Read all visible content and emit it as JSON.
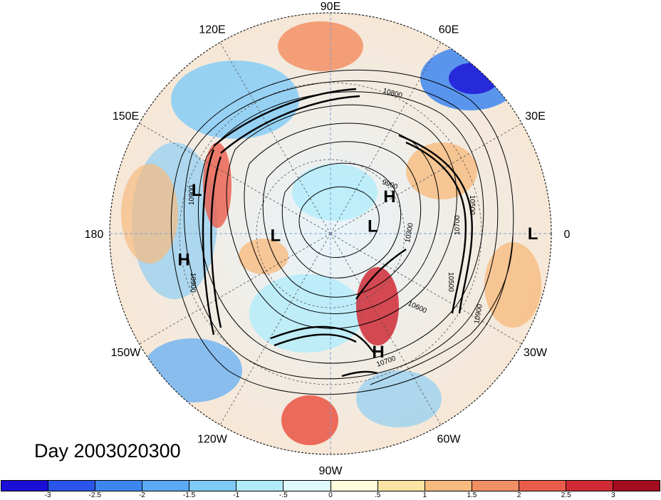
{
  "title": "Day 2003020300",
  "projection": "polar-stereographic-north",
  "longitude_labels": [
    {
      "text": "90E",
      "lon": 90
    },
    {
      "text": "60E",
      "lon": 60
    },
    {
      "text": "30E",
      "lon": 30
    },
    {
      "text": "0",
      "lon": 0
    },
    {
      "text": "30W",
      "lon": -30
    },
    {
      "text": "60W",
      "lon": -60
    },
    {
      "text": "90W",
      "lon": -90
    },
    {
      "text": "120W",
      "lon": -120
    },
    {
      "text": "150W",
      "lon": -150
    },
    {
      "text": "180",
      "lon": 180
    },
    {
      "text": "150E",
      "lon": 150
    },
    {
      "text": "120E",
      "lon": 120
    }
  ],
  "pressure_markers": [
    {
      "text": "H",
      "lat": 55,
      "lon": 32
    },
    {
      "text": "L",
      "lat": 68,
      "lon": 10
    },
    {
      "text": "L",
      "lat": 5,
      "lon": 0
    },
    {
      "text": "H",
      "lat": 30,
      "lon": -68
    },
    {
      "text": "L",
      "lat": 62,
      "lon": -178
    },
    {
      "text": "L",
      "lat": 25,
      "lon": 162
    },
    {
      "text": "H",
      "lat": 22,
      "lon": -170
    }
  ],
  "contour_labels": [
    "10800",
    "9900",
    "10900",
    "10500",
    "10300",
    "10700",
    "10600",
    "10900",
    "10700",
    "10900",
    "10500"
  ],
  "colorbar": {
    "colors": [
      "#1a0fd6",
      "#2a55ea",
      "#3d86ee",
      "#5aaaf5",
      "#7fcaf7",
      "#b2ecfb",
      "#def8fb",
      "#fdfbdb",
      "#fbe4a3",
      "#f7bb7f",
      "#f29065",
      "#eb5c4b",
      "#cf2a36",
      "#a30d1f"
    ],
    "tick_labels": [
      "-3",
      "-2.5",
      "-2",
      "-1.5",
      "-1",
      "-.5",
      "0",
      ".5",
      "1",
      "1.5",
      "2",
      "2.5",
      "3"
    ]
  }
}
